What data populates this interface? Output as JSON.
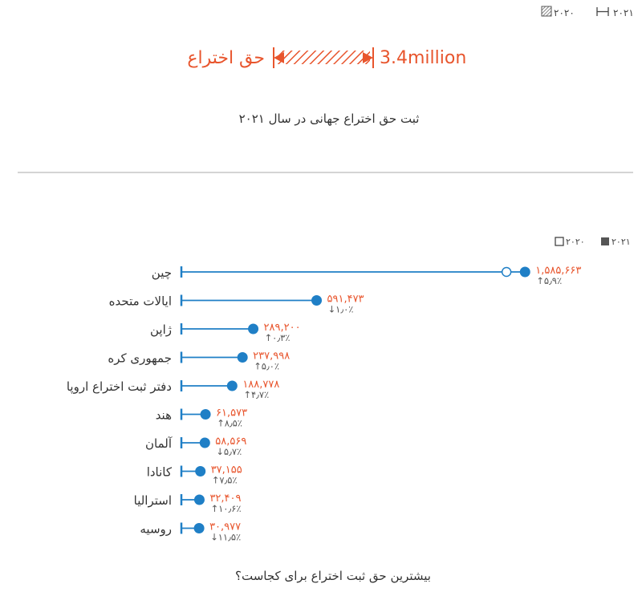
{
  "colors": {
    "accent": "#e8552d",
    "line": "#1f7fc6",
    "dot": "#1f7fc6",
    "text": "#333333",
    "muted": "#555555",
    "divider": "#bbbbbb"
  },
  "top_legend": {
    "item_2020": "۲۰۲۰",
    "item_2021": "۲۰۲۱"
  },
  "summary": {
    "label": "حق اختراع",
    "value": "3.4million",
    "caption": "ثبت حق اختراع جهانی در سال ۲۰۲۱"
  },
  "chart_legend": {
    "item_2020": "۲۰۲۰",
    "item_2021": "۲۰۲۱"
  },
  "chart_data": {
    "type": "dot",
    "title": "بیشترین حق ثبت اختراع برای کجاست؟",
    "categories": [
      "چین",
      "ایالات متحده",
      "ژاپن",
      "جمهوری کره",
      "دفتر ثبت اختراع اروپا",
      "هند",
      "آلمان",
      "کانادا",
      "استرالیا",
      "روسیه"
    ],
    "series": [
      {
        "name": "۲۰۲۱",
        "values": [
          1585663,
          591473,
          289200,
          237998,
          188778,
          61573,
          58569,
          37155,
          32409,
          30977
        ],
        "labels": [
          "۱,۵۸۵,۶۶۳",
          "۵۹۱,۴۷۳",
          "۲۸۹,۲۰۰",
          "۲۳۷,۹۹۸",
          "۱۸۸,۷۷۸",
          "۶۱,۵۷۳",
          "۵۸,۵۶۹",
          "۳۷,۱۵۵",
          "۳۲,۴۰۹",
          "۳۰,۹۷۷"
        ]
      },
      {
        "name": "۲۰۲۰",
        "values": [
          1497159,
          null,
          null,
          null,
          null,
          null,
          null,
          null,
          null,
          null
        ]
      }
    ],
    "changes": [
      {
        "dir": "up",
        "text": "۵٫۹٪"
      },
      {
        "dir": "down",
        "text": "۱٫۰٪"
      },
      {
        "dir": "up",
        "text": "۰٫۳٪"
      },
      {
        "dir": "up",
        "text": "۵٫۰٪"
      },
      {
        "dir": "up",
        "text": "۴٫۷٪"
      },
      {
        "dir": "up",
        "text": "۸٫۵٪"
      },
      {
        "dir": "down",
        "text": "۵٫۷٪"
      },
      {
        "dir": "up",
        "text": "۷٫۵٪"
      },
      {
        "dir": "up",
        "text": "۱۰٫۶٪"
      },
      {
        "dir": "down",
        "text": "۱۱٫۵٪"
      }
    ],
    "xlim": [
      0,
      1600000
    ]
  }
}
